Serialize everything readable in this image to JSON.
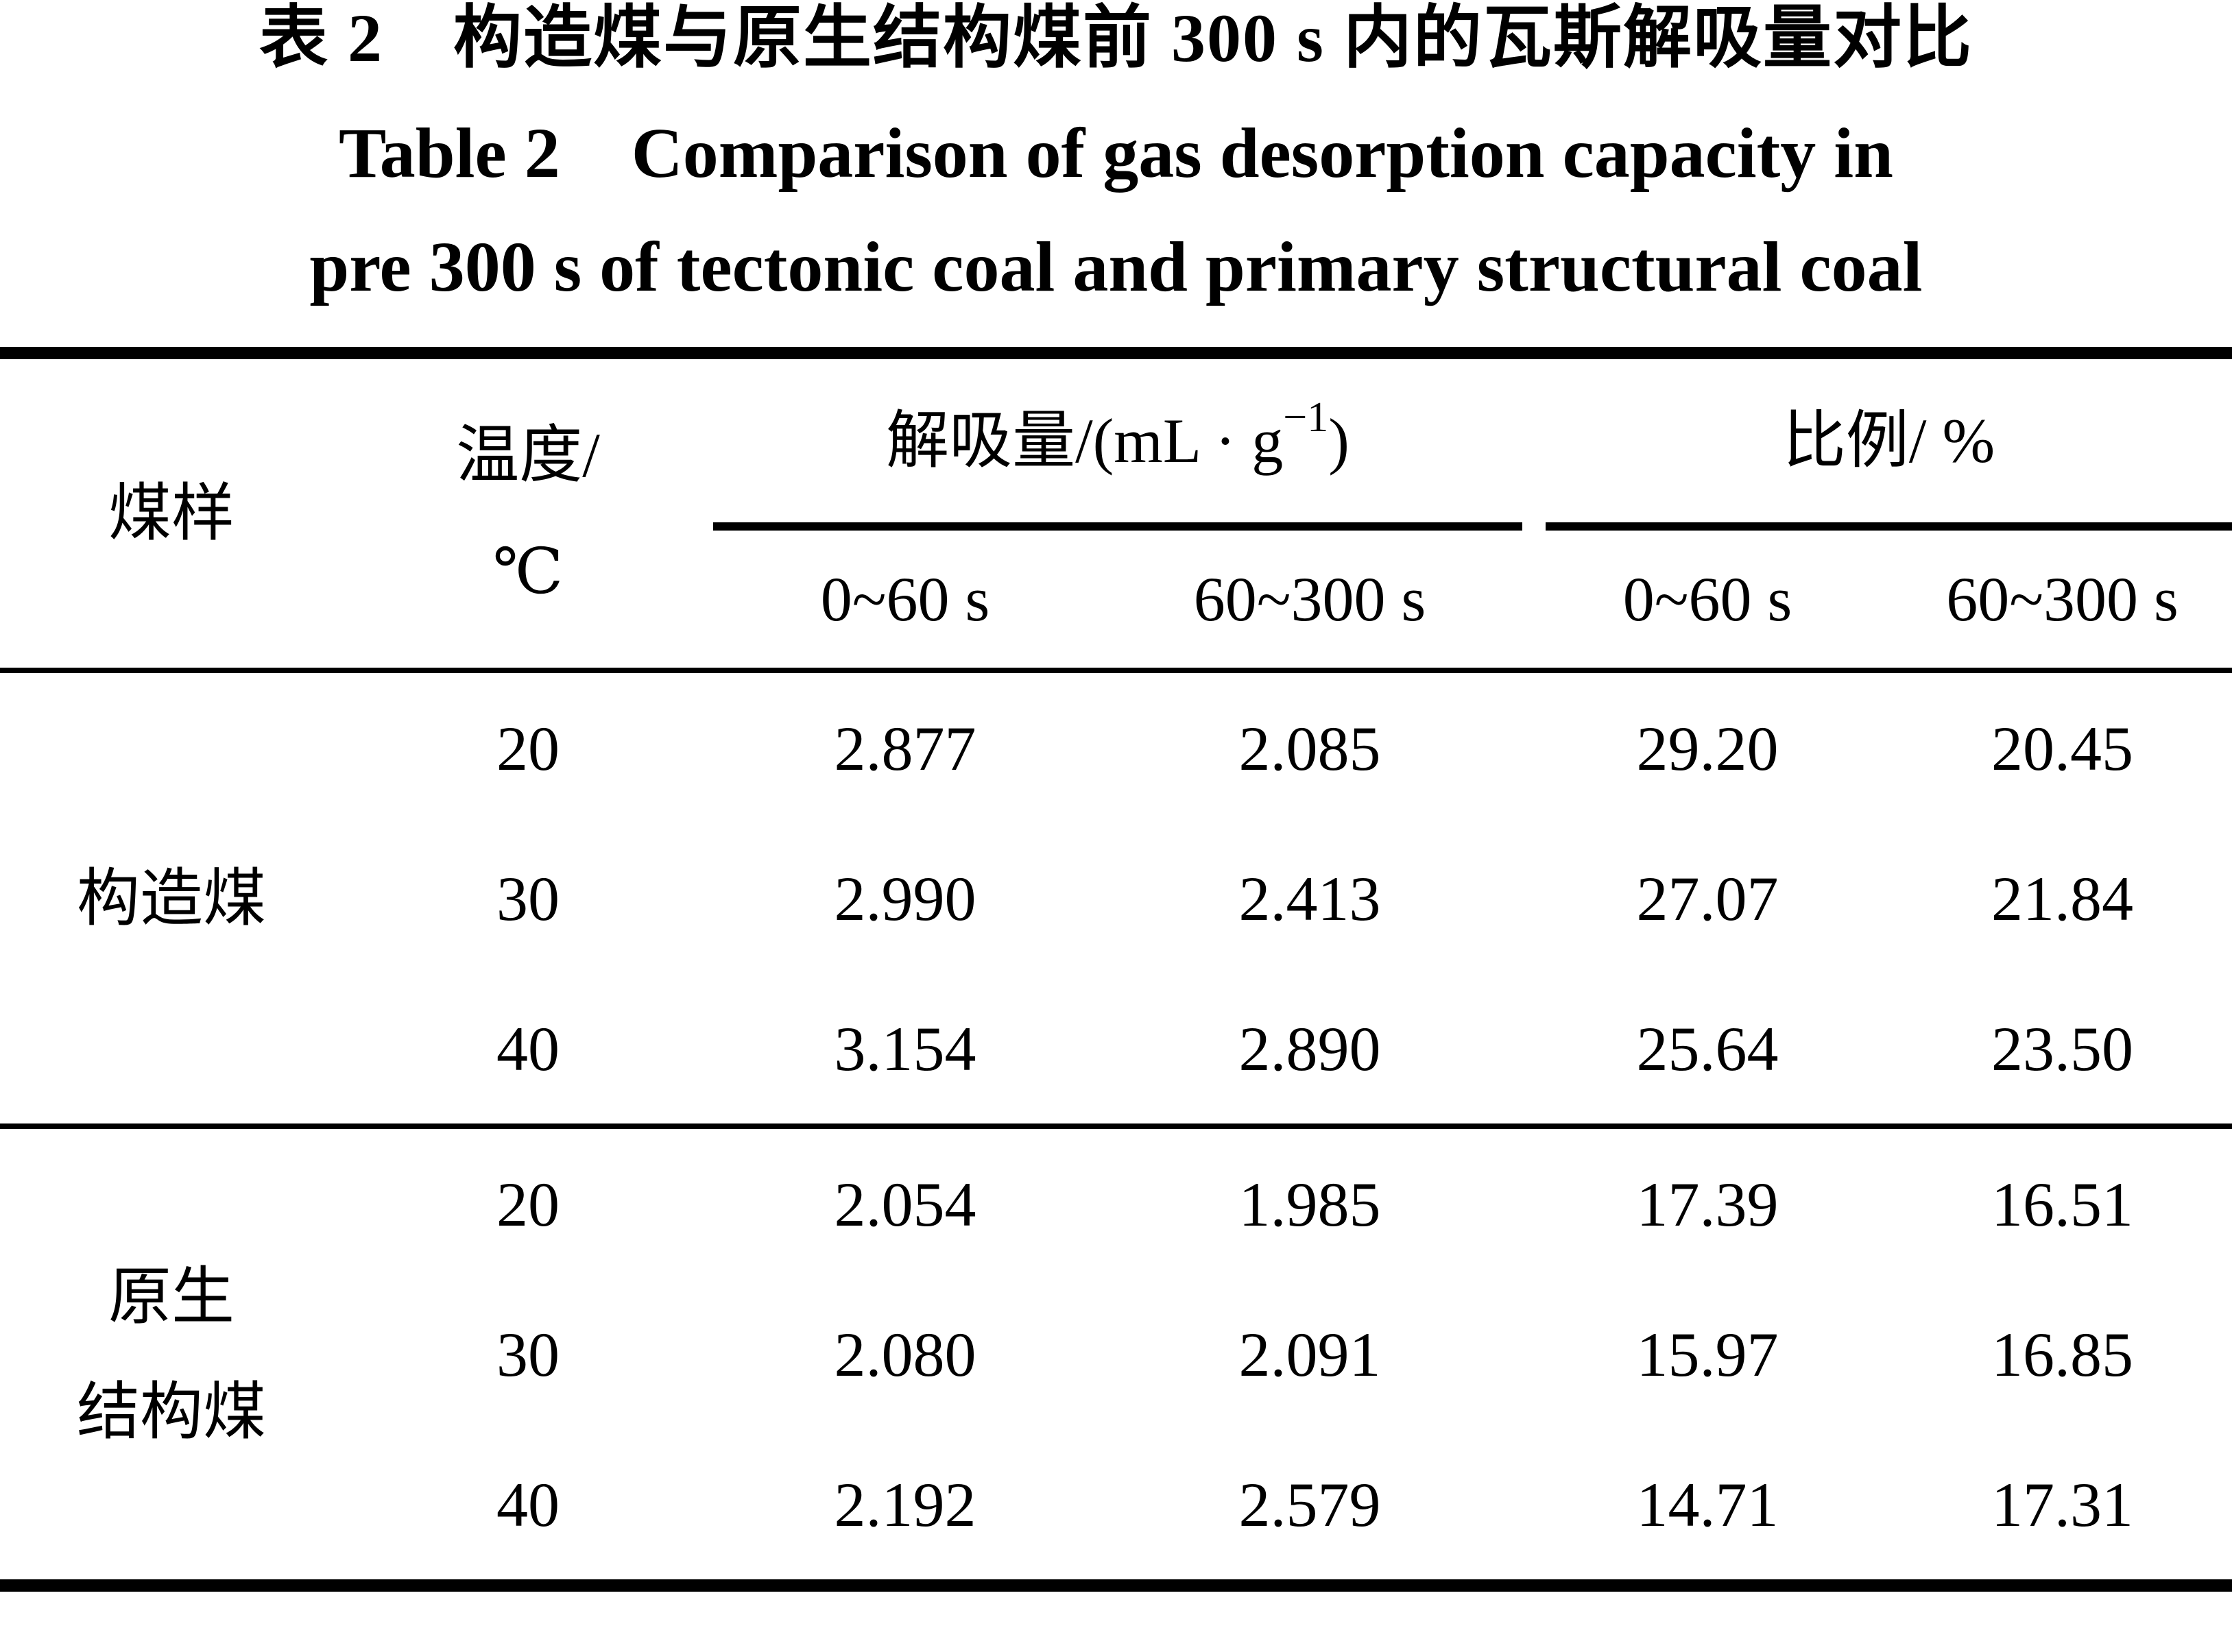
{
  "title": {
    "zh": "表 2　构造煤与原生结构煤前 300 s 内的瓦斯解吸量对比",
    "en_line1": "Table 2　Comparison of gas desorption capacity in",
    "en_line2": "pre 300 s of tectonic coal and primary structural coal"
  },
  "table": {
    "col_sample": "煤样",
    "col_temp_line1": "温度/",
    "col_temp_line2": "℃",
    "group_desorption_prefix": "解吸量/(mL · g",
    "group_desorption_sup": "−1",
    "group_desorption_suffix": ")",
    "group_ratio": "比例/ %",
    "subheaders": [
      "0~60 s",
      "60~300 s",
      "0~60 s",
      "60~300 s"
    ],
    "sections": [
      {
        "label_line1": "构造煤",
        "rows": [
          {
            "temp": "20",
            "d1": "2.877",
            "d2": "2.085",
            "r1": "29.20",
            "r2": "20.45"
          },
          {
            "temp": "30",
            "d1": "2.990",
            "d2": "2.413",
            "r1": "27.07",
            "r2": "21.84"
          },
          {
            "temp": "40",
            "d1": "3.154",
            "d2": "2.890",
            "r1": "25.64",
            "r2": "23.50"
          }
        ]
      },
      {
        "label_line1": "原生",
        "label_line2": "结构煤",
        "rows": [
          {
            "temp": "20",
            "d1": "2.054",
            "d2": "1.985",
            "r1": "17.39",
            "r2": "16.51"
          },
          {
            "temp": "30",
            "d1": "2.080",
            "d2": "2.091",
            "r1": "15.97",
            "r2": "16.85"
          },
          {
            "temp": "40",
            "d1": "2.192",
            "d2": "2.579",
            "r1": "14.71",
            "r2": "17.31"
          }
        ]
      }
    ]
  }
}
